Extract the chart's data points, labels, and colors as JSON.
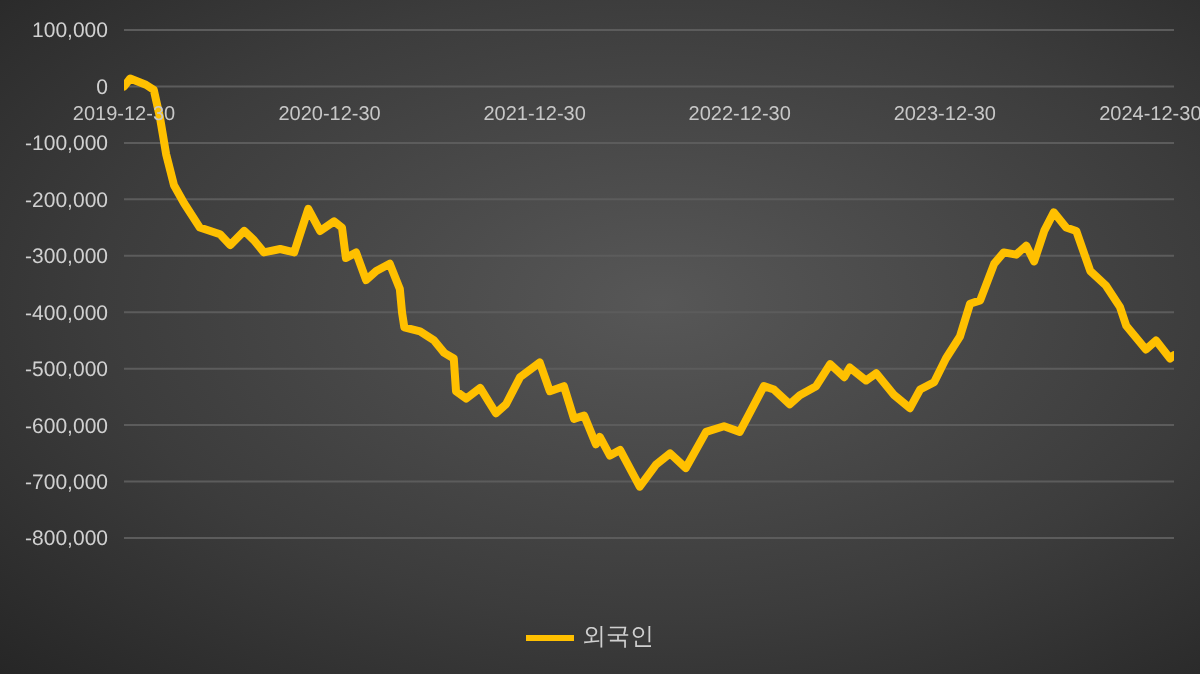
{
  "chart_data": {
    "type": "line",
    "x": [
      "2019-12-30",
      "2020-01-10",
      "2020-02-07",
      "2020-02-21",
      "2020-03-03",
      "2020-03-14",
      "2020-03-28",
      "2020-04-15",
      "2020-05-13",
      "2020-06-18",
      "2020-07-06",
      "2020-07-31",
      "2020-08-17",
      "2020-09-04",
      "2020-10-03",
      "2020-10-28",
      "2020-11-04",
      "2020-11-22",
      "2020-12-13",
      "2021-01-07",
      "2021-01-21",
      "2021-01-28",
      "2021-02-15",
      "2021-03-05",
      "2021-03-23",
      "2021-04-16",
      "2021-05-04",
      "2021-05-08",
      "2021-05-12",
      "2021-06-09",
      "2021-07-04",
      "2021-07-22",
      "2021-08-08",
      "2021-08-12",
      "2021-08-30",
      "2021-09-24",
      "2021-10-22",
      "2021-11-09",
      "2021-12-04",
      "2022-01-08",
      "2022-01-26",
      "2022-02-20",
      "2022-03-10",
      "2022-03-28",
      "2022-04-18",
      "2022-04-25",
      "2022-05-13",
      "2022-05-31",
      "2022-07-05",
      "2022-08-03",
      "2022-08-28",
      "2022-09-25",
      "2022-10-31",
      "2022-12-02",
      "2022-12-30",
      "2023-02-11",
      "2023-03-01",
      "2023-03-29",
      "2023-04-16",
      "2023-05-15",
      "2023-06-09",
      "2023-07-04",
      "2023-07-14",
      "2023-08-12",
      "2023-08-30",
      "2023-10-01",
      "2023-10-29",
      "2023-11-16",
      "2023-12-11",
      "2024-01-01",
      "2024-01-26",
      "2024-02-13",
      "2024-03-02",
      "2024-03-27",
      "2024-04-13",
      "2024-05-05",
      "2024-05-23",
      "2024-06-06",
      "2024-06-24",
      "2024-07-11",
      "2024-08-02",
      "2024-08-20",
      "2024-09-14",
      "2024-10-12",
      "2024-11-06",
      "2024-11-17",
      "2024-12-22",
      "2025-01-09",
      "2025-02-03",
      "2025-02-10"
    ],
    "series": [
      {
        "name": "외국인",
        "color": "#ffc000",
        "values": [
          0,
          14000,
          3000,
          -6000,
          -55000,
          -120000,
          -175000,
          -207000,
          -250000,
          -262000,
          -281000,
          -256000,
          -272000,
          -294000,
          -288000,
          -294000,
          -272000,
          -217000,
          -256000,
          -239000,
          -250000,
          -304000,
          -294000,
          -343000,
          -327000,
          -314000,
          -359000,
          -401000,
          -427000,
          -434000,
          -450000,
          -472000,
          -482000,
          -540000,
          -553000,
          -534000,
          -579000,
          -563000,
          -515000,
          -489000,
          -540000,
          -531000,
          -589000,
          -583000,
          -634000,
          -621000,
          -654000,
          -644000,
          -709000,
          -670000,
          -650000,
          -676000,
          -612000,
          -602000,
          -612000,
          -531000,
          -537000,
          -563000,
          -547000,
          -531000,
          -492000,
          -515000,
          -498000,
          -521000,
          -508000,
          -547000,
          -570000,
          -537000,
          -524000,
          -482000,
          -443000,
          -385000,
          -379000,
          -314000,
          -294000,
          -298000,
          -282000,
          -310000,
          -256000,
          -223000,
          -250000,
          -256000,
          -327000,
          -353000,
          -391000,
          -424000,
          -466000,
          -450000,
          -482000,
          -476000
        ]
      }
    ],
    "xlim": [
      "2019-12-30",
      "2025-02-10"
    ],
    "xticks": [
      "2019-12-30",
      "2020-12-30",
      "2021-12-30",
      "2022-12-30",
      "2023-12-30",
      "2024-12-30"
    ],
    "ylim": [
      -800000,
      100000
    ],
    "yticks": [
      {
        "value": -800000,
        "label": "-800,000"
      },
      {
        "value": -700000,
        "label": "-700,000"
      },
      {
        "value": -600000,
        "label": "-600,000"
      },
      {
        "value": -500000,
        "label": "-500,000"
      },
      {
        "value": -400000,
        "label": "-400,000"
      },
      {
        "value": -300000,
        "label": "-300,000"
      },
      {
        "value": -200000,
        "label": "-200,000"
      },
      {
        "value": -100000,
        "label": "-100,000"
      },
      0,
      {
        "value": 100000,
        "label": "100,000"
      }
    ],
    "grid": "y",
    "legend": "bottom",
    "marker": "none",
    "line_style": "solid"
  }
}
